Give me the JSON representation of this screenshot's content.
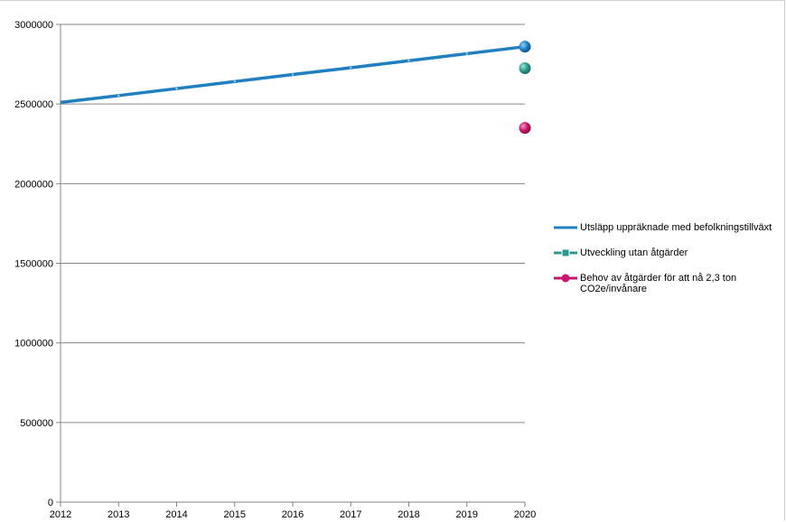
{
  "chart_data": {
    "type": "line",
    "title": "",
    "xlabel": "",
    "ylabel": "",
    "x": [
      2012,
      2013,
      2014,
      2015,
      2016,
      2017,
      2018,
      2019,
      2020
    ],
    "x_tick_labels": [
      "2012",
      "2013",
      "2014",
      "2015",
      "2016",
      "2017",
      "2018",
      "2019",
      "2020"
    ],
    "y_tick_labels": [
      "0",
      "500000",
      "1000000",
      "1500000",
      "2000000",
      "2500000",
      "3000000"
    ],
    "ylim": [
      0,
      3000000
    ],
    "grid": "horizontal",
    "legend_position": "right",
    "series": [
      {
        "name": "Utsläpp uppräknade med befolkningstillväxt",
        "color": "#1f7fc0",
        "x": [
          2012,
          2013,
          2014,
          2015,
          2016,
          2017,
          2018,
          2019,
          2020
        ],
        "values": [
          2510000,
          2553000,
          2597000,
          2641000,
          2685000,
          2728000,
          2772000,
          2816000,
          2860000
        ]
      },
      {
        "name": "Utveckling utan åtgärder",
        "color": "#2e9a8c",
        "x": [
          2020
        ],
        "values": [
          2725000
        ]
      },
      {
        "name": "Behov av åtgärder för att nå 2,3 ton CO2e/invånare",
        "color": "#c8166e",
        "x": [
          2020
        ],
        "values": [
          2350000
        ]
      }
    ]
  }
}
